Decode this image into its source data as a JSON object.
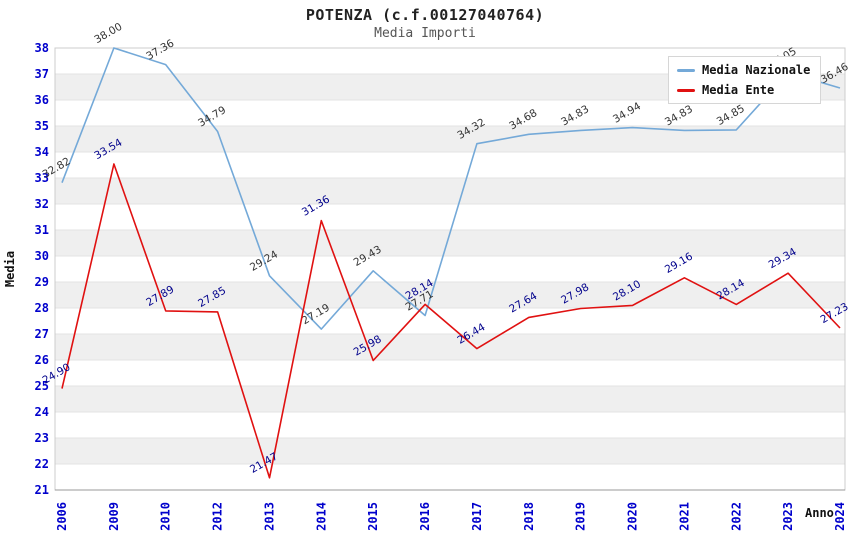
{
  "header": {
    "title": "POTENZA (c.f.00127040764)",
    "subtitle": "Media Importi"
  },
  "chart_data": {
    "type": "line",
    "title": "POTENZA (c.f.00127040764)",
    "subtitle": "Media Importi",
    "xlabel": "Anno",
    "ylabel": "Media",
    "ylim": [
      21,
      38
    ],
    "y_step": 1,
    "grid": "alternating-horizontal-bands",
    "legend_position": "top-right-overlay",
    "categories": [
      "2006",
      "2009",
      "2010",
      "2012",
      "2013",
      "2014",
      "2015",
      "2016",
      "2017",
      "2018",
      "2019",
      "2020",
      "2021",
      "2022",
      "2023",
      "2024"
    ],
    "series": [
      {
        "name": "Media Nazionale",
        "color": "#74a9d8",
        "label_color": "#333333",
        "values": [
          32.82,
          38.0,
          37.36,
          34.79,
          29.24,
          27.19,
          29.43,
          27.71,
          34.32,
          34.68,
          34.83,
          34.94,
          34.83,
          34.85,
          37.05,
          36.46
        ]
      },
      {
        "name": "Media Ente",
        "color": "#e01111",
        "label_color": "#00008b",
        "values": [
          24.9,
          33.54,
          27.89,
          27.85,
          21.47,
          31.36,
          25.98,
          28.14,
          26.44,
          27.64,
          27.98,
          28.1,
          29.16,
          28.14,
          29.34,
          27.23
        ]
      }
    ],
    "colors": {
      "band": "#efefef",
      "gridline": "#e3e3e3",
      "plot_border": "#cccccc",
      "axis_line": "#999999",
      "tick_label": "#0000cc"
    }
  }
}
